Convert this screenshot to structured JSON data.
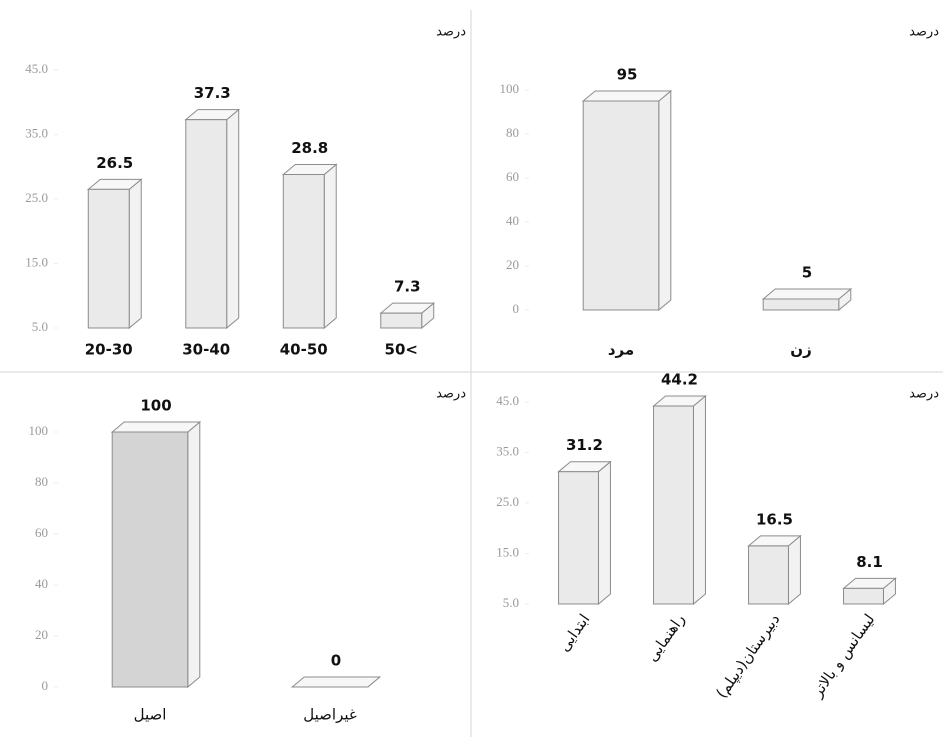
{
  "chart_data": [
    {
      "type": "bar3d",
      "y_label": "درصد",
      "categories": [
        "20-30",
        "30-40",
        "40-50",
        "50<"
      ],
      "values": [
        26.5,
        37.3,
        28.8,
        7.3
      ],
      "color": "#e6e6e6",
      "ylim": [
        5,
        45
      ],
      "yticks": [
        {
          "value": 5,
          "label": "5.0"
        },
        {
          "value": 15,
          "label": "15.0"
        },
        {
          "value": 25,
          "label": "25.0"
        },
        {
          "value": 35,
          "label": "35.0"
        },
        {
          "value": 45,
          "label": "45.0"
        }
      ]
    },
    {
      "type": "bar3d",
      "y_label": "درصد",
      "categories": [
        "مرد",
        "زن"
      ],
      "values": [
        95,
        5
      ],
      "color": "#e6e6e6",
      "ylim": [
        0,
        100
      ],
      "yticks": [
        0,
        20,
        40,
        60,
        80,
        100
      ]
    },
    {
      "type": "bar3d",
      "y_label": "درصد",
      "categories": [
        "اصیل",
        "غیراصیل"
      ],
      "values": [
        100,
        0
      ],
      "colors": [
        "#cccccc",
        "#eeeeee"
      ],
      "ylim": [
        0,
        100
      ],
      "yticks": [
        0,
        20,
        40,
        60,
        80,
        100
      ]
    },
    {
      "type": "bar3d",
      "y_label": "درصد",
      "categories": [
        "ابتدایی",
        "راهنمایی",
        "دبیرستان(دیپلم)",
        "لیسانس و بالاتر"
      ],
      "values": [
        31.2,
        44.2,
        16.5,
        8.1
      ],
      "color": "#e6e6e6",
      "ylim": [
        5,
        45
      ],
      "yticks": [
        {
          "value": 5,
          "label": "5.0"
        },
        {
          "value": 15,
          "label": "15.0"
        },
        {
          "value": 25,
          "label": "25.0"
        },
        {
          "value": 35,
          "label": "35.0"
        },
        {
          "value": 45,
          "label": "45.0"
        }
      ]
    }
  ]
}
